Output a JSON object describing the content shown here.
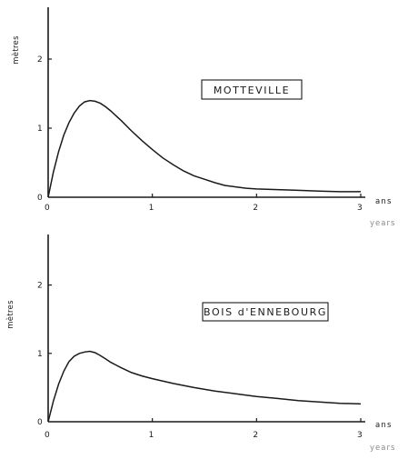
{
  "chart_data": [
    {
      "type": "line",
      "title": "MOTTEVILLE",
      "ylabel": "mètres",
      "xunit": "ans",
      "xunit_secondary": "years",
      "xlim": [
        0,
        3
      ],
      "ylim": [
        0,
        2.5
      ],
      "x_ticks": [
        "0",
        "1",
        "2",
        "3"
      ],
      "y_ticks": [
        "0",
        "1",
        "2"
      ],
      "grid": false,
      "series": [
        {
          "x": [
            0,
            0.05,
            0.1,
            0.15,
            0.2,
            0.25,
            0.3,
            0.35,
            0.4,
            0.45,
            0.5,
            0.55,
            0.6,
            0.7,
            0.8,
            0.9,
            1.0,
            1.1,
            1.2,
            1.3,
            1.4,
            1.5,
            1.6,
            1.7,
            1.8,
            1.9,
            2.0,
            2.2,
            2.4,
            2.6,
            2.8,
            3.0
          ],
          "y": [
            0,
            0.36,
            0.66,
            0.9,
            1.08,
            1.22,
            1.32,
            1.38,
            1.4,
            1.39,
            1.36,
            1.31,
            1.25,
            1.11,
            0.96,
            0.82,
            0.69,
            0.57,
            0.47,
            0.38,
            0.31,
            0.26,
            0.21,
            0.17,
            0.15,
            0.13,
            0.12,
            0.11,
            0.1,
            0.09,
            0.08,
            0.08
          ]
        }
      ]
    },
    {
      "type": "line",
      "title": "BOIS d'ENNEBOURG",
      "ylabel": "mètres",
      "xunit": "ans",
      "xunit_secondary": "years",
      "xlim": [
        0,
        3
      ],
      "ylim": [
        0,
        2.5
      ],
      "x_ticks": [
        "0",
        "1",
        "2",
        "3"
      ],
      "y_ticks": [
        "0",
        "1",
        "2"
      ],
      "grid": false,
      "series": [
        {
          "x": [
            0,
            0.05,
            0.1,
            0.15,
            0.2,
            0.25,
            0.3,
            0.35,
            0.4,
            0.45,
            0.5,
            0.55,
            0.6,
            0.7,
            0.8,
            0.9,
            1.0,
            1.2,
            1.4,
            1.6,
            1.8,
            2.0,
            2.2,
            2.4,
            2.6,
            2.8,
            3.0
          ],
          "y": [
            0,
            0.3,
            0.55,
            0.74,
            0.88,
            0.96,
            1.0,
            1.02,
            1.03,
            1.01,
            0.97,
            0.92,
            0.87,
            0.79,
            0.72,
            0.67,
            0.63,
            0.56,
            0.5,
            0.45,
            0.41,
            0.37,
            0.34,
            0.31,
            0.29,
            0.27,
            0.26
          ]
        }
      ]
    }
  ]
}
